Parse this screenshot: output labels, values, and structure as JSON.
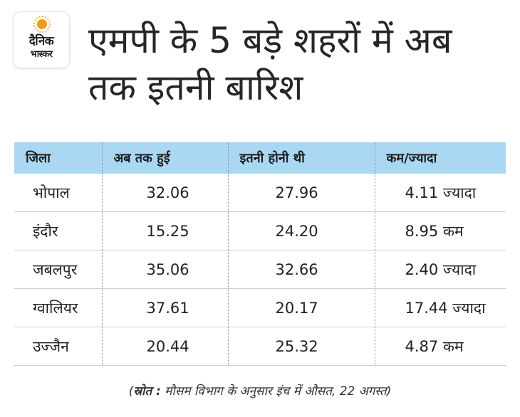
{
  "brand": {
    "line1": "दैनिक",
    "line2": "भास्कर",
    "accent_color": "#f39a1e"
  },
  "title": "एमपी के 5 बड़े शहरों में अब तक इतनी बारिश",
  "table": {
    "header_color": "#aad8f3",
    "headers": [
      "जिला",
      "अब तक हुई",
      "इतनी होनी थी",
      "कम/ज्यादा"
    ],
    "rows": [
      [
        "भोपाल",
        "32.06",
        "27.96",
        "4.11 ज्यादा"
      ],
      [
        "इंदौर",
        "15.25",
        "24.20",
        "8.95 कम"
      ],
      [
        "जबलपुर",
        "35.06",
        "32.66",
        "2.40 ज्यादा"
      ],
      [
        "ग्वालियर",
        "37.61",
        "20.17",
        "17.44 ज्यादा"
      ],
      [
        "उज्जैन",
        "20.44",
        "25.32",
        "4.87 कम"
      ]
    ]
  },
  "source": {
    "open_paren": "(",
    "label": "स्रोत :",
    "text": " मौसम विभाग के अनुसार इंच में औसत, 22 अगस्त)"
  }
}
